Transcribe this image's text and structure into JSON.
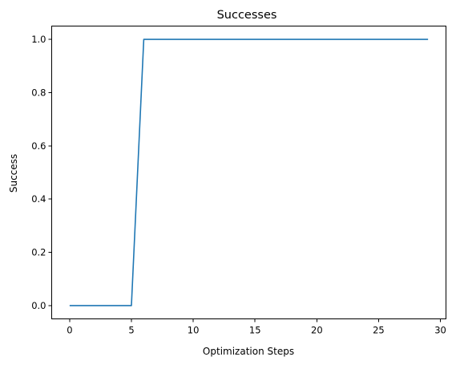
{
  "chart_data": {
    "type": "line",
    "title": "Successes",
    "xlabel": "Optimization Steps",
    "ylabel": "Success",
    "xlim": [
      -1.45,
      30.45
    ],
    "ylim": [
      -0.05,
      1.05
    ],
    "xticks": [
      0,
      5,
      10,
      15,
      20,
      25,
      30
    ],
    "xtick_labels": [
      "0",
      "5",
      "10",
      "15",
      "20",
      "25",
      "30"
    ],
    "yticks": [
      0.0,
      0.2,
      0.4,
      0.6,
      0.8,
      1.0
    ],
    "ytick_labels": [
      "0.0",
      "0.2",
      "0.4",
      "0.6",
      "0.8",
      "1.0"
    ],
    "grid": false,
    "series": [
      {
        "color": "#1f77b4",
        "x": [
          0,
          1,
          2,
          3,
          4,
          5,
          6,
          7,
          8,
          9,
          10,
          11,
          12,
          13,
          14,
          15,
          16,
          17,
          18,
          19,
          20,
          21,
          22,
          23,
          24,
          25,
          26,
          27,
          28,
          29
        ],
        "y": [
          0,
          0,
          0,
          0,
          0,
          0,
          1,
          1,
          1,
          1,
          1,
          1,
          1,
          1,
          1,
          1,
          1,
          1,
          1,
          1,
          1,
          1,
          1,
          1,
          1,
          1,
          1,
          1,
          1,
          1
        ]
      }
    ]
  }
}
